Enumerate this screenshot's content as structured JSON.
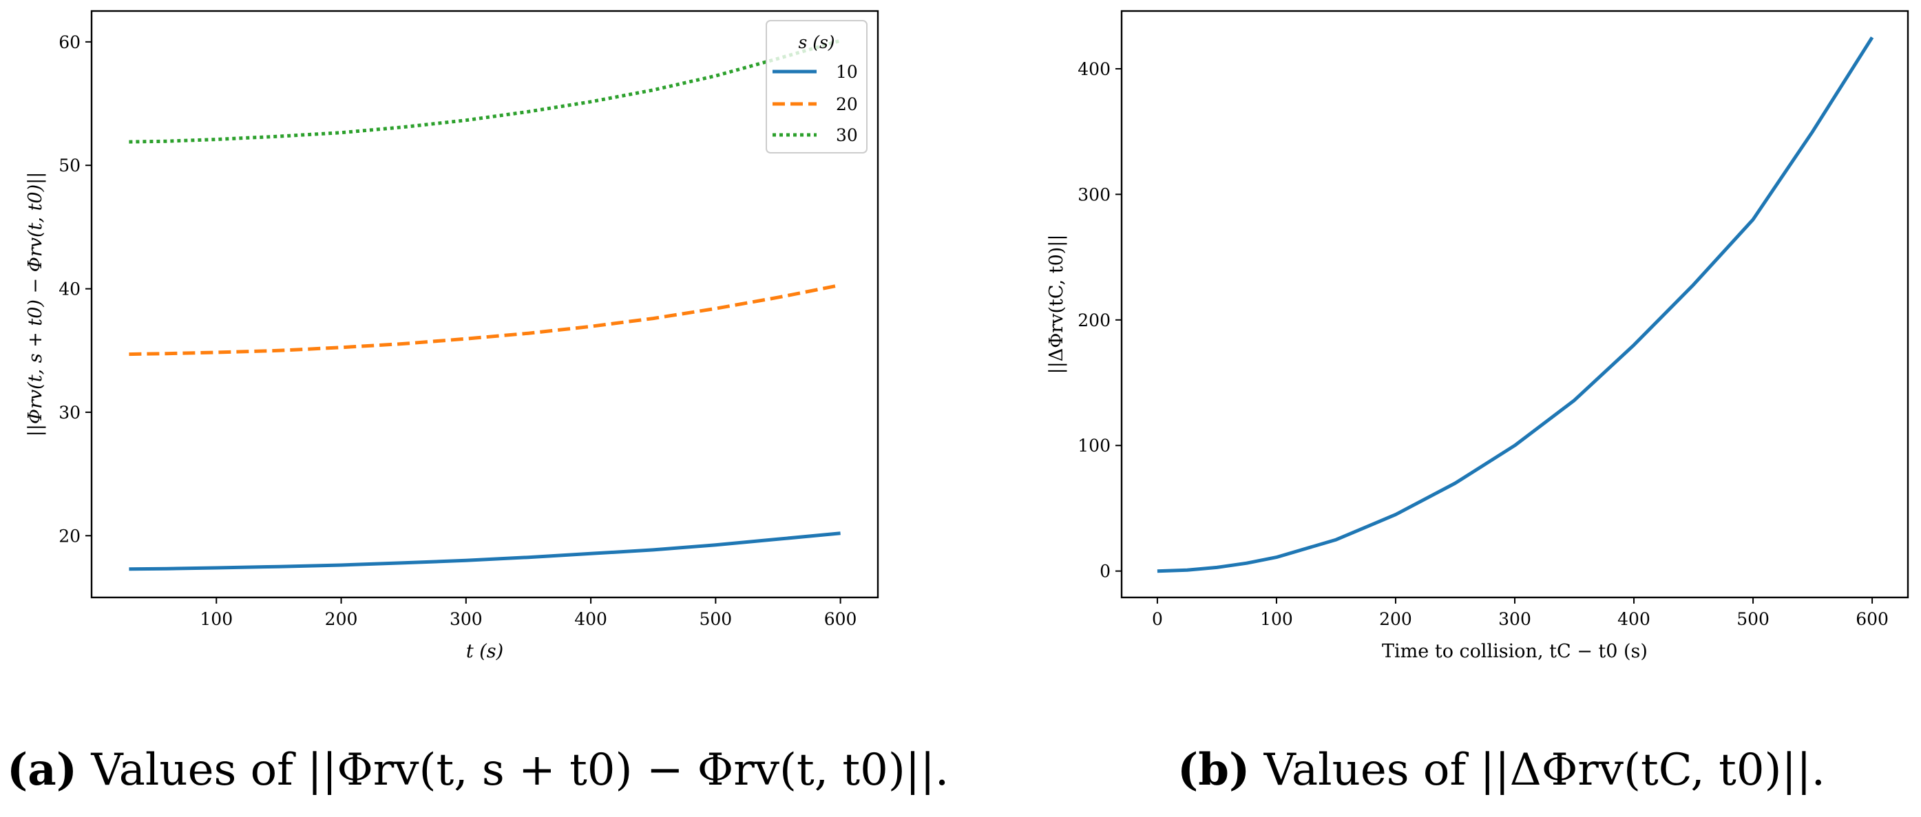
{
  "chart_data": [
    {
      "type": "line",
      "title": "",
      "xlabel": "t (s)",
      "ylabel": "||Φrv(t, s + t0) − Φrv(t, t0)||",
      "xlim": [
        0,
        630
      ],
      "ylim": [
        15,
        62.5
      ],
      "xticks": [
        100,
        200,
        300,
        400,
        500,
        600
      ],
      "yticks": [
        20,
        30,
        40,
        50,
        60
      ],
      "x": [
        30,
        60,
        100,
        150,
        200,
        250,
        300,
        350,
        400,
        450,
        500,
        550,
        600
      ],
      "series": [
        {
          "name": "10",
          "color": "#1f77b4",
          "dash": "solid",
          "values": [
            17.3,
            17.33,
            17.4,
            17.5,
            17.62,
            17.8,
            18.0,
            18.25,
            18.55,
            18.85,
            19.25,
            19.72,
            20.2
          ]
        },
        {
          "name": "20",
          "color": "#ff7f0e",
          "dash": "dashed",
          "values": [
            34.7,
            34.75,
            34.85,
            35.0,
            35.25,
            35.55,
            35.95,
            36.4,
            36.95,
            37.6,
            38.4,
            39.3,
            40.3
          ]
        },
        {
          "name": "30",
          "color": "#2ca02c",
          "dash": "dotted",
          "values": [
            51.9,
            51.95,
            52.1,
            52.35,
            52.65,
            53.1,
            53.65,
            54.35,
            55.15,
            56.1,
            57.25,
            58.65,
            60.1
          ]
        }
      ],
      "legend": {
        "title": "s (s)",
        "placement": "top-right",
        "entries": [
          "10",
          "20",
          "30"
        ]
      },
      "caption": {
        "label": "(a)",
        "text": " Values of ||Φrv(t, s + t0) − Φrv(t, t0)||."
      }
    },
    {
      "type": "line",
      "title": "",
      "xlabel": "Time to collision, tC − t0 (s)",
      "ylabel": "||ΔΦrv(tC, t0)||",
      "xlim": [
        -30,
        630
      ],
      "ylim": [
        -21,
        446
      ],
      "xticks": [
        0,
        100,
        200,
        300,
        400,
        500,
        600
      ],
      "yticks": [
        0,
        100,
        200,
        300,
        400
      ],
      "x": [
        0,
        25,
        50,
        75,
        100,
        150,
        200,
        250,
        300,
        350,
        400,
        450,
        500,
        550,
        600
      ],
      "series": [
        {
          "name": "",
          "color": "#1f77b4",
          "dash": "solid",
          "values": [
            0,
            0.8,
            2.9,
            6.3,
            11,
            25,
            45,
            70,
            100,
            136,
            180,
            228,
            280,
            350,
            425
          ]
        }
      ],
      "caption": {
        "label": "(b)",
        "text": " Values of ||ΔΦrv(tC, t0)||."
      }
    }
  ]
}
